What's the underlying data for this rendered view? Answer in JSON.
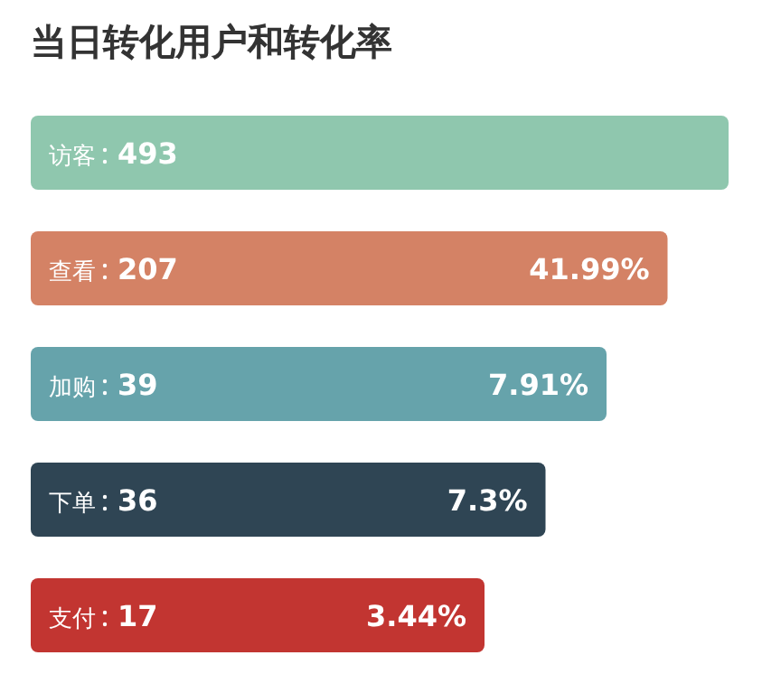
{
  "chart_data": {
    "type": "other",
    "title": "当日转化用户和转化率",
    "categories": [
      "访客",
      "查看",
      "加购",
      "下单",
      "支付"
    ],
    "data_labels": true,
    "series": [
      {
        "values": [
          493,
          207,
          39,
          36,
          17
        ],
        "colors": [
          "#8fc7ae",
          "#d48265",
          "#66a3ab",
          "#2f4554",
          "#c23531"
        ]
      },
      {
        "values": [
          null,
          41.99,
          7.91,
          7.3,
          3.44
        ],
        "value_labels": [
          null,
          "41.99%",
          "7.91%",
          "7.3%",
          "3.44%"
        ]
      }
    ]
  }
}
